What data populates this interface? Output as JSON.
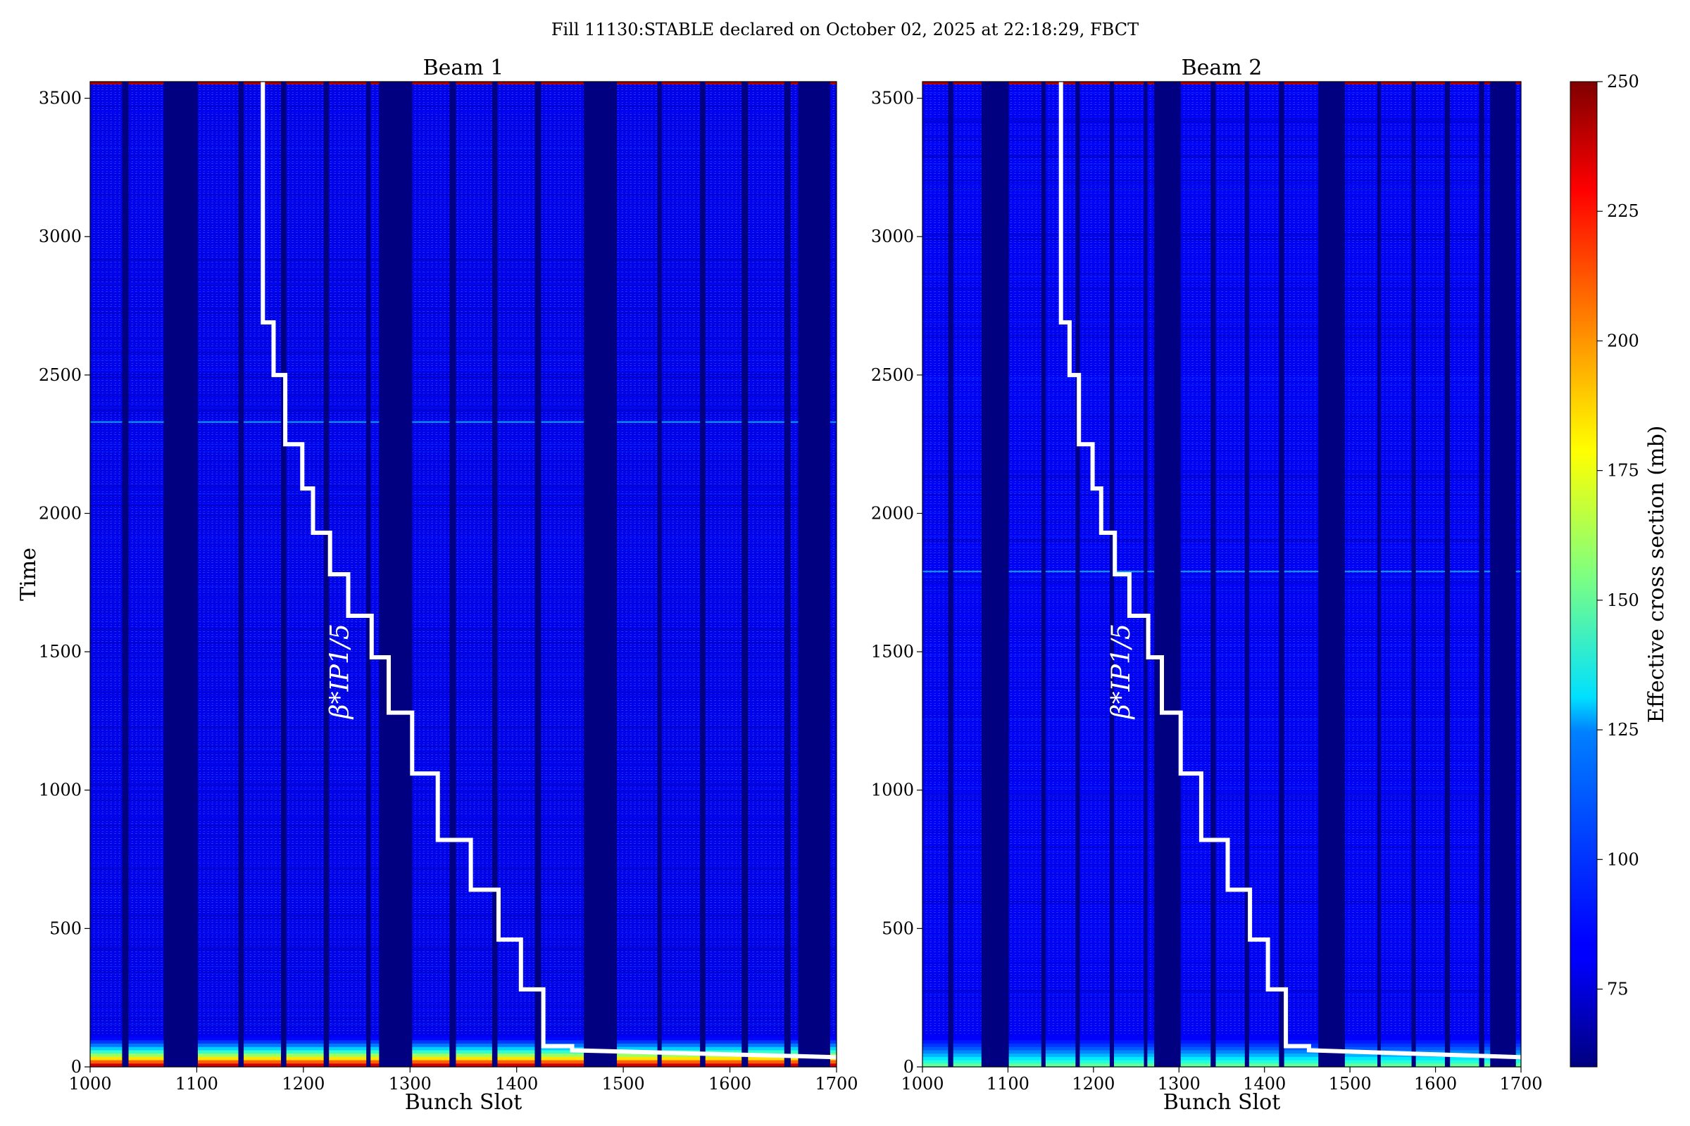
{
  "figure_title": "Fill 11130:STABLE declared on October 02, 2025 at 22:18:29, FBCT",
  "colorbar": {
    "label": "Effective cross section (mb)",
    "ticks": [
      75,
      100,
      125,
      150,
      175,
      200,
      225,
      250
    ],
    "range": [
      60,
      250
    ],
    "colormap": "jet"
  },
  "chart_data": [
    {
      "type": "heatmap",
      "title": "Beam 1",
      "xlabel": "Bunch Slot",
      "ylabel": "Time",
      "xlim": [
        1000,
        1700
      ],
      "ylim": [
        0,
        3560
      ],
      "xticks": [
        1000,
        1100,
        1200,
        1300,
        1400,
        1500,
        1600,
        1700
      ],
      "yticks": [
        0,
        500,
        1000,
        1500,
        2000,
        2500,
        3000,
        3500
      ],
      "empty_slot_ranges": [
        [
          1030,
          1036
        ],
        [
          1069,
          1101
        ],
        [
          1139,
          1144
        ],
        [
          1179,
          1184
        ],
        [
          1219,
          1224
        ],
        [
          1259,
          1263
        ],
        [
          1271,
          1302
        ],
        [
          1337,
          1343
        ],
        [
          1377,
          1382
        ],
        [
          1417,
          1423
        ],
        [
          1463,
          1494
        ],
        [
          1532,
          1536
        ],
        [
          1572,
          1577
        ],
        [
          1611,
          1617
        ],
        [
          1651,
          1657
        ],
        [
          1664,
          1694
        ]
      ],
      "background_cross_section_mb": 80,
      "early_cross_section_mb": 235,
      "horizontal_band_time": 2330,
      "annotation": "β*IP1/5",
      "beta_star_step_line": {
        "x": [
          1162,
          1162,
          1172,
          1172,
          1183,
          1183,
          1199,
          1199,
          1209,
          1209,
          1225,
          1225,
          1242,
          1242,
          1264,
          1264,
          1280,
          1280,
          1302,
          1302,
          1326,
          1326,
          1357,
          1357,
          1383,
          1383,
          1404,
          1404,
          1425,
          1425,
          1452,
          1452,
          1700
        ],
        "y": [
          3560,
          2690,
          2690,
          2500,
          2500,
          2250,
          2250,
          2090,
          2090,
          1930,
          1930,
          1780,
          1780,
          1630,
          1630,
          1480,
          1480,
          1280,
          1280,
          1060,
          1060,
          820,
          820,
          640,
          640,
          460,
          460,
          280,
          280,
          75,
          75,
          60,
          35
        ]
      }
    },
    {
      "type": "heatmap",
      "title": "Beam 2",
      "xlabel": "Bunch Slot",
      "ylabel": "",
      "xlim": [
        1000,
        1700
      ],
      "ylim": [
        0,
        3560
      ],
      "xticks": [
        1000,
        1100,
        1200,
        1300,
        1400,
        1500,
        1600,
        1700
      ],
      "yticks": [
        0,
        500,
        1000,
        1500,
        2000,
        2500,
        3000,
        3500
      ],
      "empty_slot_ranges": [
        [
          1030,
          1036
        ],
        [
          1069,
          1101
        ],
        [
          1139,
          1144
        ],
        [
          1179,
          1184
        ],
        [
          1219,
          1224
        ],
        [
          1259,
          1263
        ],
        [
          1271,
          1302
        ],
        [
          1337,
          1343
        ],
        [
          1377,
          1382
        ],
        [
          1417,
          1423
        ],
        [
          1463,
          1494
        ],
        [
          1532,
          1536
        ],
        [
          1572,
          1577
        ],
        [
          1611,
          1617
        ],
        [
          1651,
          1657
        ],
        [
          1664,
          1694
        ]
      ],
      "background_cross_section_mb": 82,
      "early_cross_section_mb": 150,
      "horizontal_band_time": 1790,
      "annotation": "β*IP1/5",
      "beta_star_step_line": {
        "x": [
          1162,
          1162,
          1172,
          1172,
          1183,
          1183,
          1199,
          1199,
          1209,
          1209,
          1225,
          1225,
          1242,
          1242,
          1264,
          1264,
          1280,
          1280,
          1302,
          1302,
          1326,
          1326,
          1357,
          1357,
          1383,
          1383,
          1404,
          1404,
          1425,
          1425,
          1452,
          1452,
          1700
        ],
        "y": [
          3560,
          2690,
          2690,
          2500,
          2500,
          2250,
          2250,
          2090,
          2090,
          1930,
          1930,
          1780,
          1780,
          1630,
          1630,
          1480,
          1480,
          1280,
          1280,
          1060,
          1060,
          820,
          820,
          640,
          640,
          460,
          460,
          280,
          280,
          75,
          75,
          60,
          35
        ]
      }
    }
  ]
}
